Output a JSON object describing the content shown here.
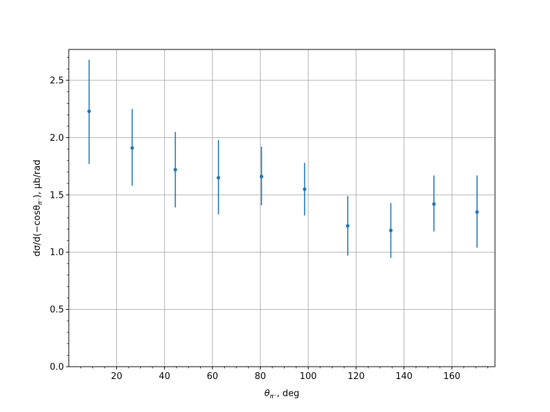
{
  "chart_data": {
    "type": "scatter",
    "title": "",
    "xlabel_main": "θ",
    "xlabel_sub": "π⁻",
    "xlabel_rest": ", deg",
    "ylabel_prefix": "dσ/d(−cosθ",
    "ylabel_sub": "π⁻",
    "ylabel_rest": "), μb/rad",
    "xlim": [
      0,
      178
    ],
    "ylim": [
      0,
      2.77
    ],
    "grid": true,
    "color": "#1f77b4",
    "x_ticks": [
      20,
      40,
      60,
      80,
      100,
      120,
      140,
      160
    ],
    "x_tick_labels": [
      "20",
      "40",
      "60",
      "80",
      "100",
      "120",
      "140",
      "160"
    ],
    "x_minor_step": 5,
    "y_ticks": [
      0.0,
      0.5,
      1.0,
      1.5,
      2.0,
      2.5
    ],
    "y_tick_labels": [
      "0.0",
      "0.5",
      "1.0",
      "1.5",
      "2.0",
      "2.5"
    ],
    "y_minor_step": 0.1,
    "series": [
      {
        "points": [
          {
            "x": 8.5,
            "y": 2.23,
            "ylow": 1.77,
            "yhigh": 2.68
          },
          {
            "x": 26.5,
            "y": 1.91,
            "ylow": 1.58,
            "yhigh": 2.25
          },
          {
            "x": 44.5,
            "y": 1.72,
            "ylow": 1.39,
            "yhigh": 2.05
          },
          {
            "x": 62.5,
            "y": 1.65,
            "ylow": 1.33,
            "yhigh": 1.98
          },
          {
            "x": 80.5,
            "y": 1.66,
            "ylow": 1.41,
            "yhigh": 1.92
          },
          {
            "x": 98.5,
            "y": 1.55,
            "ylow": 1.32,
            "yhigh": 1.78
          },
          {
            "x": 116.5,
            "y": 1.23,
            "ylow": 0.97,
            "yhigh": 1.49
          },
          {
            "x": 134.5,
            "y": 1.19,
            "ylow": 0.95,
            "yhigh": 1.43
          },
          {
            "x": 152.5,
            "y": 1.42,
            "ylow": 1.18,
            "yhigh": 1.67
          },
          {
            "x": 170.5,
            "y": 1.35,
            "ylow": 1.04,
            "yhigh": 1.67
          }
        ]
      }
    ]
  }
}
